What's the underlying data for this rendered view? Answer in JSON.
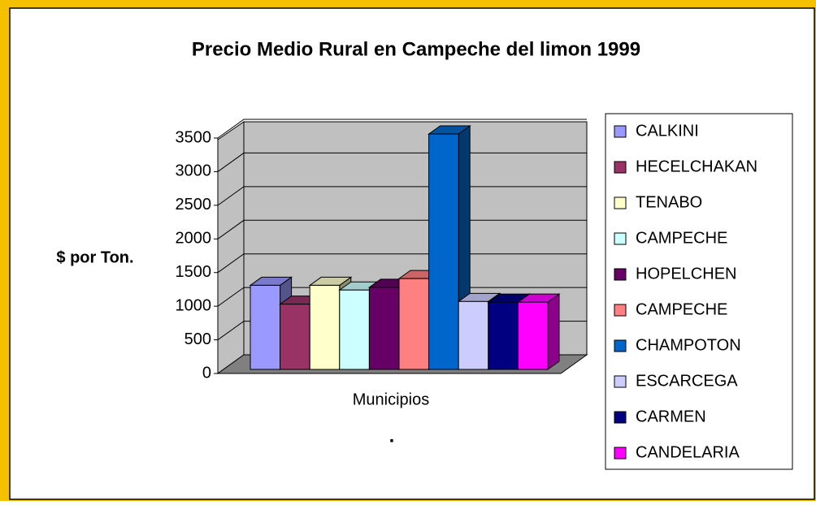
{
  "chart_data": {
    "type": "bar3d",
    "title": "Precio Medio Rural en Campeche del limon 1999",
    "y_label": "$ por Ton.",
    "categories": [
      "Municipios"
    ],
    "footnote": ".",
    "series": [
      {
        "name": "CALKINI",
        "color": "#9999ff",
        "values": [
          1250
        ]
      },
      {
        "name": "HECELCHAKAN",
        "color": "#993366",
        "values": [
          970
        ]
      },
      {
        "name": "TENABO",
        "color": "#ffffcc",
        "values": [
          1250
        ]
      },
      {
        "name": "CAMPECHE",
        "color": "#ccffff",
        "values": [
          1180
        ]
      },
      {
        "name": "HOPELCHEN",
        "color": "#660066",
        "values": [
          1220
        ]
      },
      {
        "name": "CAMPECHE",
        "color": "#ff8080",
        "values": [
          1350
        ]
      },
      {
        "name": "CHAMPOTON",
        "color": "#0066cc",
        "values": [
          3500
        ]
      },
      {
        "name": "ESCARCEGA",
        "color": "#ccccff",
        "values": [
          1010
        ]
      },
      {
        "name": "CARMEN",
        "color": "#000080",
        "values": [
          1000
        ]
      },
      {
        "name": "CANDELARIA",
        "color": "#ff00ff",
        "values": [
          1000
        ]
      }
    ],
    "ylim": [
      0,
      3500
    ],
    "yticks": [
      0,
      500,
      1000,
      1500,
      2000,
      2500,
      3000,
      3500
    ],
    "grid": true,
    "legend": "right"
  }
}
